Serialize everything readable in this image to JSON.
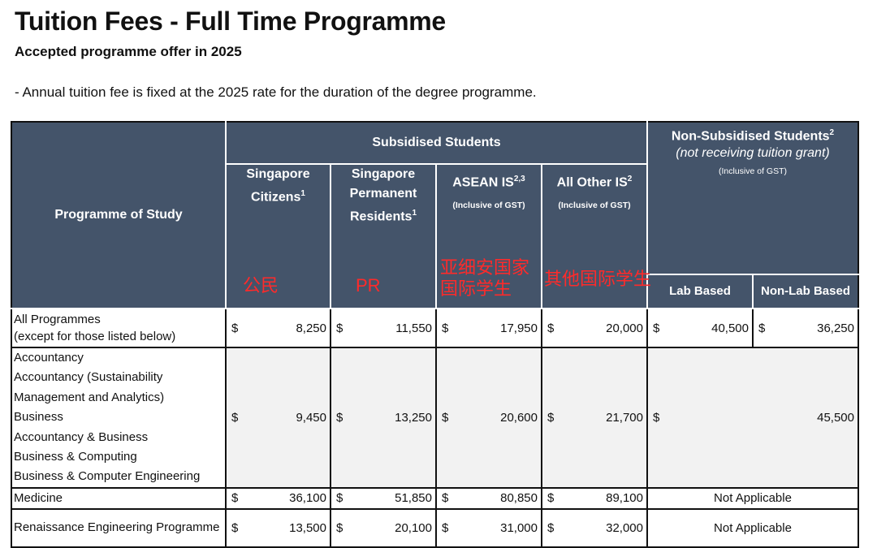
{
  "title": "Tuition Fees - Full Time Programme",
  "subtitle": "Accepted programme offer in 2025",
  "note": "- Annual tuition fee is fixed at the 2025 rate for the duration of the degree programme.",
  "header": {
    "programme_col": "Programme of Study",
    "subsidised": "Subsidised Students",
    "non_subsidised": "Non-Subsidised Students",
    "non_subsidised_sup": "2",
    "non_subsidised_sub": "(not receiving tuition grant)",
    "non_subsidised_gst": "(Inclusive of GST)",
    "citizens": "Singapore Citizens",
    "citizens_sup": "1",
    "pr": "Singapore Permanent Residents",
    "pr_sup": "1",
    "asean": "ASEAN IS",
    "asean_sup": "2,3",
    "asean_gst": "(Inclusive of GST)",
    "other_is": "All Other IS",
    "other_is_sup": "2",
    "other_is_gst": "(Inclusive of GST)",
    "lab": "Lab Based",
    "non_lab": "Non-Lab Based",
    "annotations": {
      "citizens": "公民",
      "pr": "PR",
      "asean": "亚细安国家国际学生",
      "other": "其他国际学生"
    }
  },
  "currency": "$",
  "rows": [
    {
      "programmes": [
        "All Programmes",
        "(except for those listed below)"
      ],
      "citizens": "8,250",
      "pr": "11,550",
      "asean": "17,950",
      "other": "20,000",
      "lab": "40,500",
      "non_lab": "36,250"
    },
    {
      "programmes": [
        "Accountancy",
        "Accountancy (Sustainability Management and Analytics)",
        "Business",
        "Accountancy & Business",
        "Business & Computing",
        "Business & Computer Engineering"
      ],
      "citizens": "9,450",
      "pr": "13,250",
      "asean": "20,600",
      "other": "21,700",
      "non_sub_merged": "45,500"
    },
    {
      "programmes": [
        "Medicine"
      ],
      "citizens": "36,100",
      "pr": "51,850",
      "asean": "80,850",
      "other": "89,100",
      "non_sub_text": "Not Applicable"
    },
    {
      "programmes": [
        "Renaissance Engineering Programme"
      ],
      "citizens": "13,500",
      "pr": "20,100",
      "asean": "31,000",
      "other": "32,000",
      "non_sub_text": "Not Applicable"
    }
  ]
}
